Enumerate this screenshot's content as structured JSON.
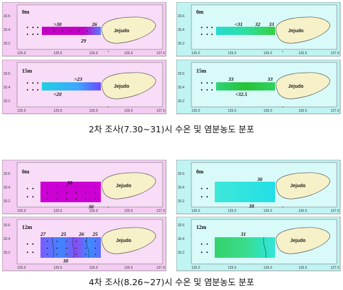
{
  "island": "Jejudo",
  "ticks_x": [
    "125.0",
    "125.5",
    "126.0",
    "126.5",
    "127.0"
  ],
  "ticks_y_top": [
    "33.6",
    "33.4",
    "33.2"
  ],
  "ticks_y_bottom": [
    "33.6",
    "33.4",
    "33.2"
  ],
  "colors": {
    "temperature_background": "#f5ccf3",
    "salinity_background": "#bff4f3",
    "island_fill": "#f7f1c9"
  },
  "panels": [
    {
      "survey": "2차",
      "variable": "temperature",
      "depth": "0m",
      "labels": [
        ">30",
        "26",
        "29"
      ]
    },
    {
      "survey": "2차",
      "variable": "salinity",
      "depth": "0m",
      "labels": [
        "<31",
        "32",
        "33"
      ]
    },
    {
      "survey": "2차",
      "variable": "temperature",
      "depth": "15m",
      "labels": [
        ">23",
        "<20"
      ]
    },
    {
      "survey": "2차",
      "variable": "salinity",
      "depth": "15m",
      "labels": [
        "33",
        "33",
        "<32.5"
      ]
    },
    {
      "survey": "4차",
      "variable": "temperature",
      "depth": "0m",
      "labels": [
        "30",
        "30"
      ]
    },
    {
      "survey": "4차",
      "variable": "salinity",
      "depth": "0m",
      "labels": [
        "30",
        "30"
      ]
    },
    {
      "survey": "4차",
      "variable": "temperature",
      "depth": "12m",
      "labels": [
        "27",
        "25",
        "26",
        "25",
        "30"
      ]
    },
    {
      "survey": "4차",
      "variable": "salinity",
      "depth": "12m",
      "labels": [
        "31"
      ]
    }
  ],
  "captions": [
    "2차 조사(7.30~31)시 수온 및 염분농도 분포",
    "4차 조사(8.26~27)시 수온 및 염분농도 분포"
  ]
}
